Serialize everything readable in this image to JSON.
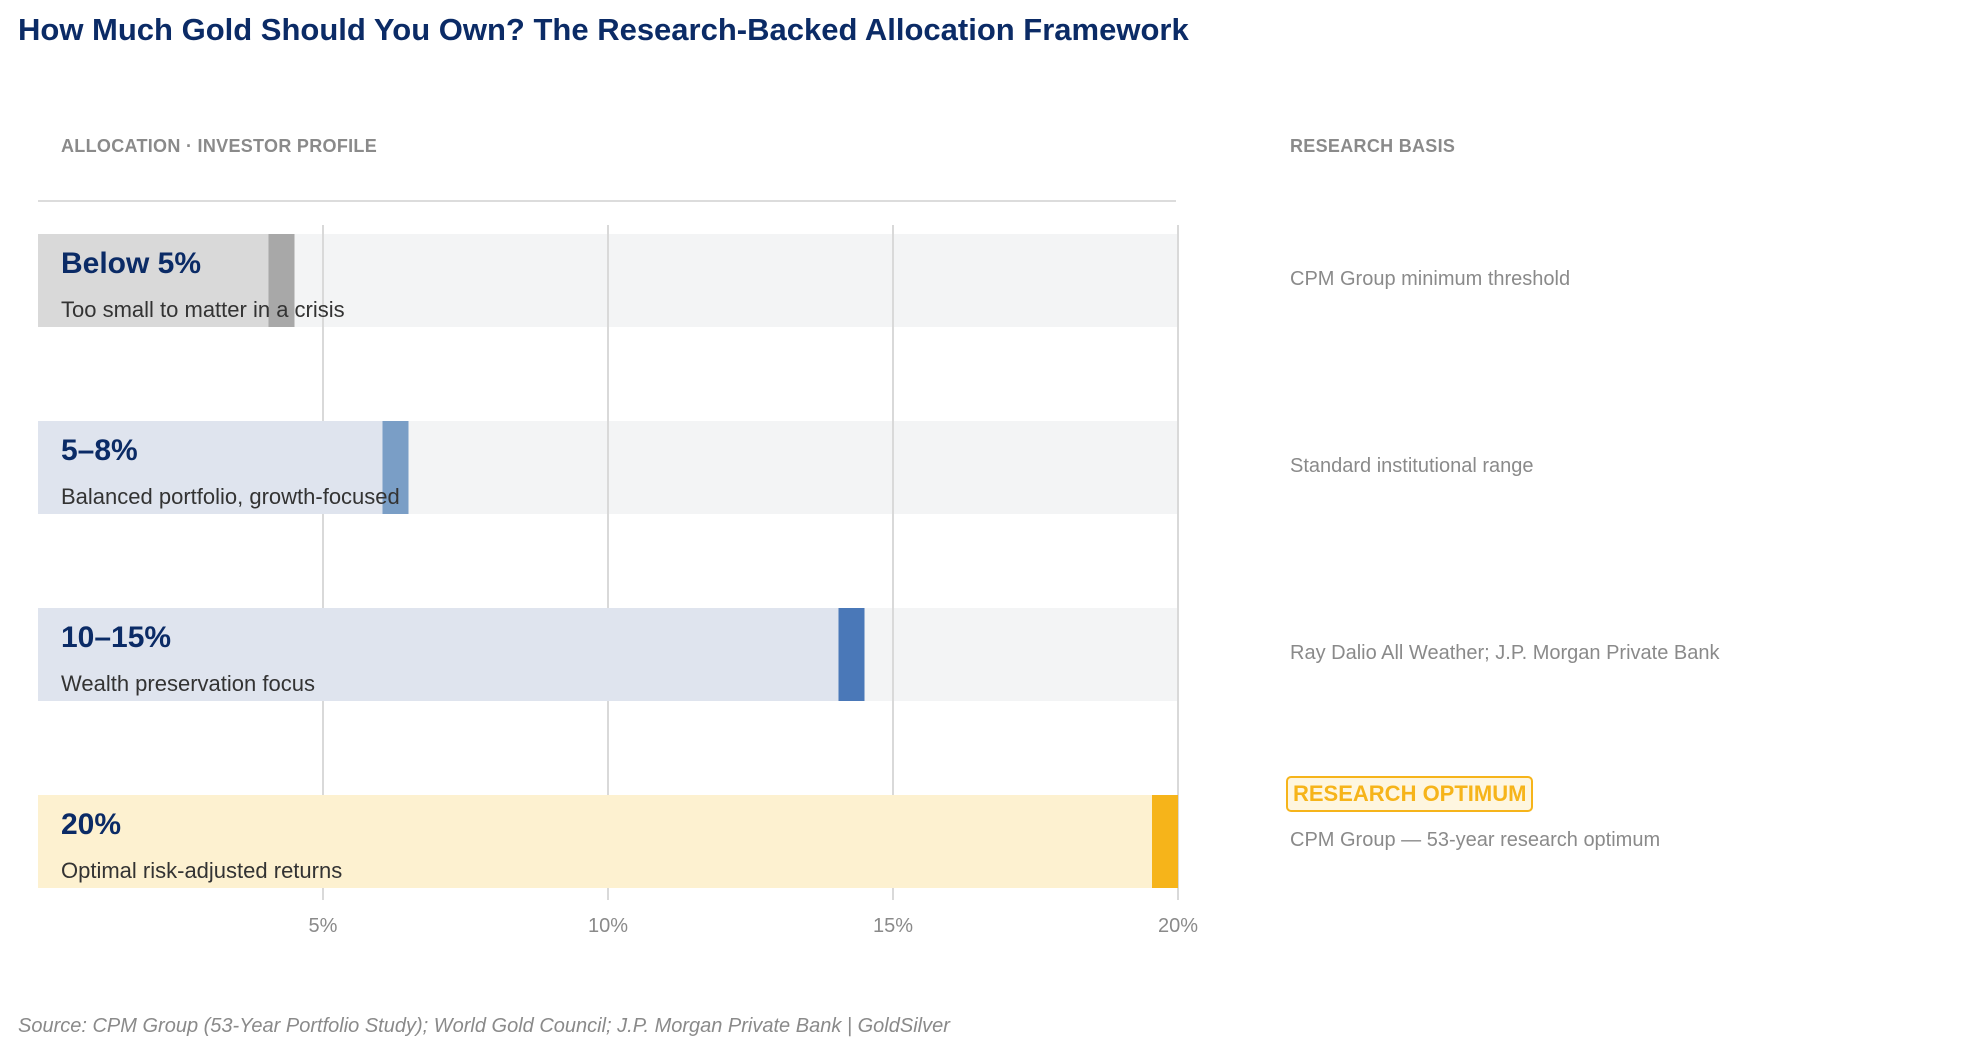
{
  "title": "How Much Gold Should You Own? The Research-Backed Allocation Framework",
  "headers": {
    "left": "ALLOCATION  ·  INVESTOR PROFILE",
    "right": "RESEARCH BASIS"
  },
  "badge": "RESEARCH OPTIMUM",
  "source": "Source: CPM Group (53-Year Portfolio Study); World Gold Council; J.P. Morgan Private Bank  |  GoldSilver",
  "colors": {
    "track": "#f3f4f5",
    "grid": "#d9d9d9",
    "title": "#0b2b66",
    "accent_gold": "#f6b41a"
  },
  "chart_data": {
    "type": "bar",
    "orientation": "horizontal",
    "xlim": [
      0,
      20
    ],
    "xticks": [
      5,
      10,
      15,
      20
    ],
    "xtick_labels": [
      "5%",
      "10%",
      "15%",
      "20%"
    ],
    "grid": true,
    "categories": [
      "Below 5%",
      "5–8%",
      "10–15%",
      "20%"
    ],
    "values": [
      4.5,
      6.5,
      14.5,
      20
    ],
    "bars": [
      {
        "label": "Below 5%",
        "description": "Too small to matter in a crisis",
        "value": 4.5,
        "fill_color": "#d9d9d9",
        "marker_color": "#a8a8a8",
        "research": "CPM Group minimum threshold"
      },
      {
        "label": "5–8%",
        "description": "Balanced portfolio, growth-focused",
        "value": 6.5,
        "fill_color": "#dfe4ee",
        "marker_color": "#7a9ec6",
        "research": "Standard institutional range"
      },
      {
        "label": "10–15%",
        "description": "Wealth preservation focus",
        "value": 14.5,
        "fill_color": "#dfe4ee",
        "marker_color": "#4a78b8",
        "research": "Ray Dalio All Weather; J.P. Morgan Private Bank"
      },
      {
        "label": "20%",
        "description": "Optimal risk-adjusted returns",
        "value": 20,
        "fill_color": "#fdf1d0",
        "marker_color": "#f6b41a",
        "research": "CPM Group — 53-year research optimum",
        "highlight": true
      }
    ]
  }
}
